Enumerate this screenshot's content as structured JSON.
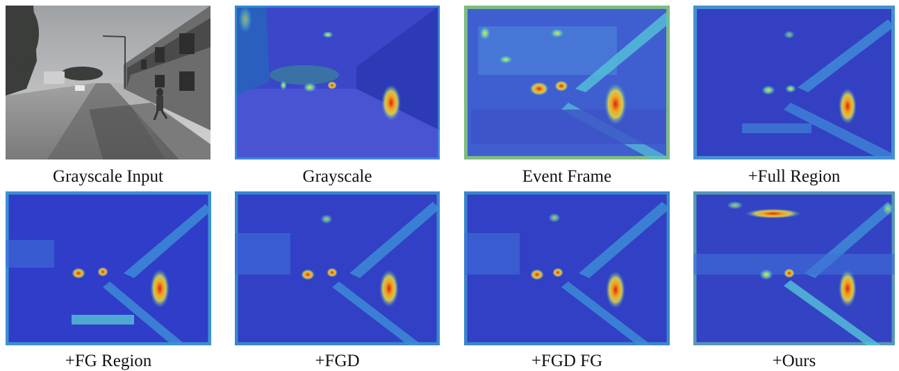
{
  "figure": {
    "panels": [
      {
        "caption": "Grayscale Input",
        "kind": "grayscale-photo"
      },
      {
        "caption": "Grayscale",
        "kind": "heatmap-overlay"
      },
      {
        "caption": "Event Frame",
        "kind": "heatmap"
      },
      {
        "caption": "+Full Region",
        "kind": "heatmap"
      },
      {
        "caption": "+FG Region",
        "kind": "heatmap"
      },
      {
        "caption": "+FGD",
        "kind": "heatmap"
      },
      {
        "caption": "+FGD FG",
        "kind": "heatmap"
      },
      {
        "caption": "+Ours",
        "kind": "heatmap"
      }
    ]
  },
  "colors": {
    "heatmap_low": "#2f3dc8",
    "heatmap_mid": "#38a8e0",
    "heatmap_high": "#f2e33a",
    "heatmap_peak": "#d9231b",
    "photo_sky": "#b9bbbd",
    "photo_road": "#8d8d8d"
  }
}
